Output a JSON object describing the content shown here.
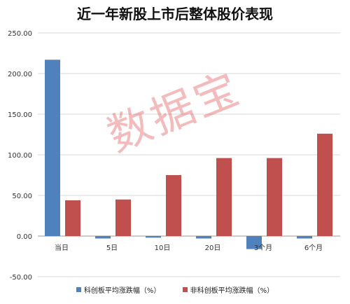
{
  "chart_data": {
    "type": "bar",
    "title": "近一年新股上市后整体股价表现",
    "categories": [
      "当日",
      "5日",
      "10日",
      "20日",
      "3个月",
      "6个月"
    ],
    "series": [
      {
        "name": "科创板平均涨跌幅（%）",
        "color": "#4f81bd",
        "values": [
          217,
          -3,
          -2,
          -3,
          -16,
          -3
        ]
      },
      {
        "name": "非科创板平均涨跌幅（%）",
        "color": "#c0504d",
        "values": [
          44,
          45,
          75,
          96,
          96,
          126
        ]
      }
    ],
    "y_ticks": [
      "250.00",
      "200.00",
      "150.00",
      "100.00",
      "50.00",
      "0.00",
      "-50.00"
    ],
    "ylim": [
      -50,
      250
    ],
    "xlabel": "",
    "ylabel": "",
    "grid": true,
    "legend_position": "bottom"
  },
  "watermark": "数据宝"
}
